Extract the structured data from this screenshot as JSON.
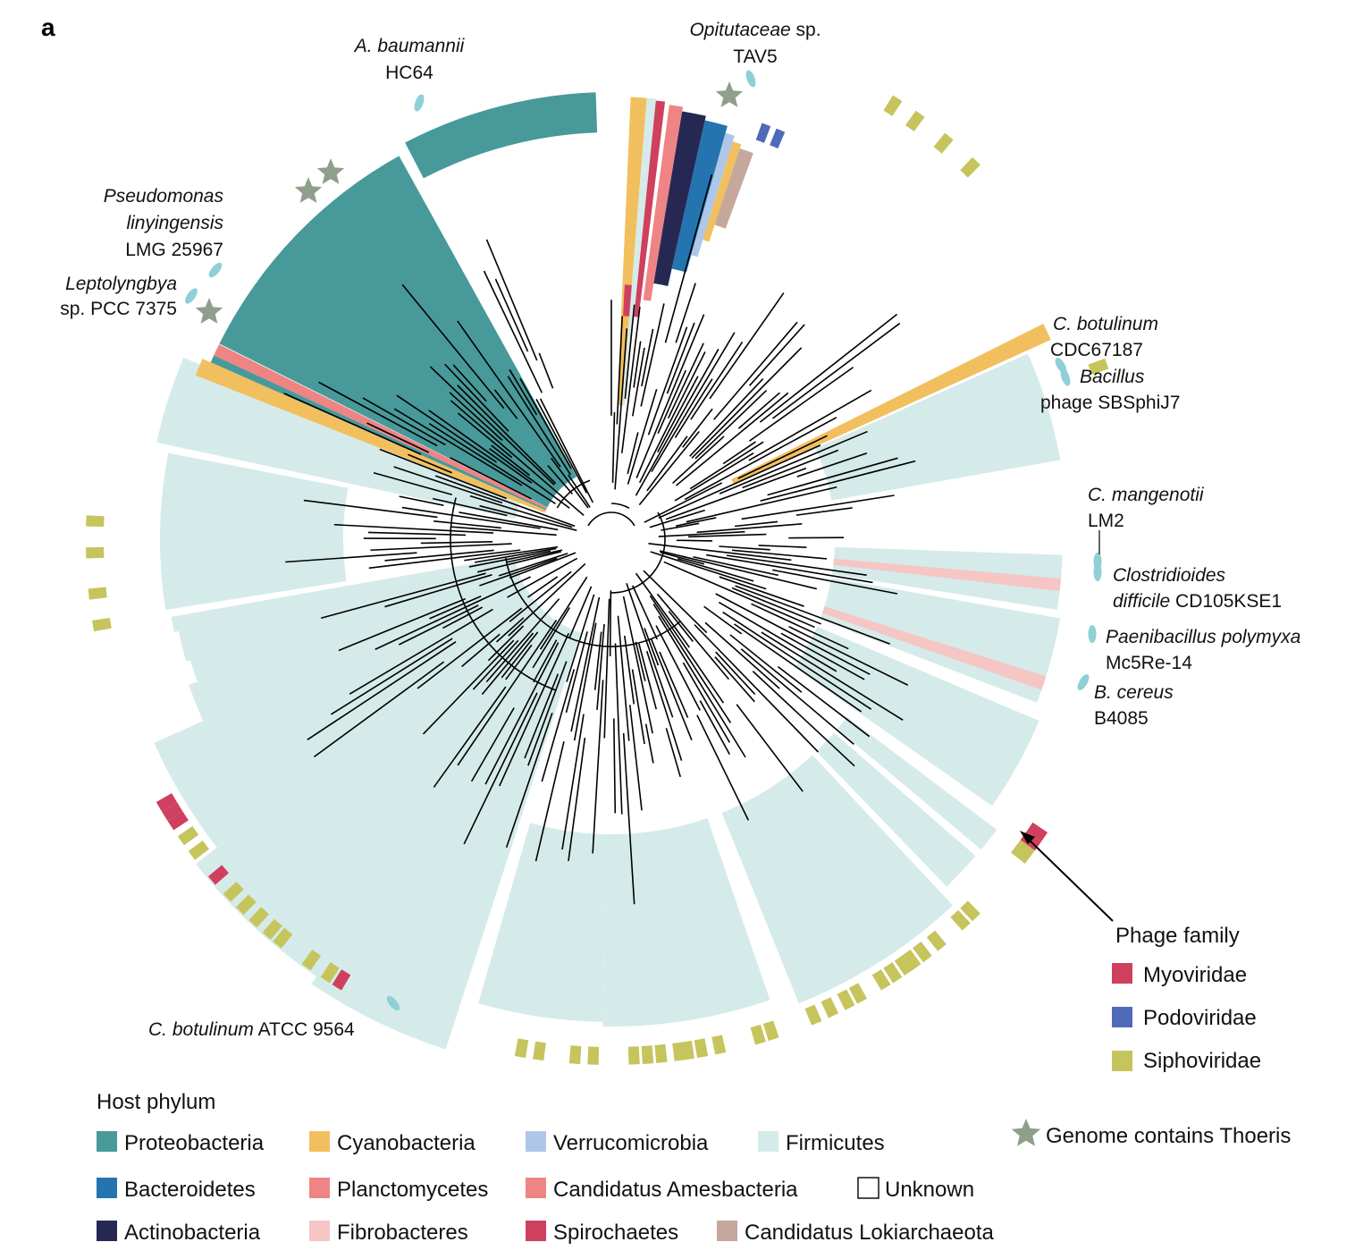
{
  "panel_label": "a",
  "colors": {
    "proteobacteria": "#48999a",
    "cyanobacteria": "#f2bf5e",
    "verrucomicrobia": "#aec7e8",
    "firmicutes": "#d5ebea",
    "bacteroidetes": "#2474b0",
    "planctomycetes": "#ef8484",
    "amesbacteria": "#ef8484",
    "actinobacteria": "#262853",
    "fibrobacteres": "#f5c6c4",
    "spirochaetes": "#cf405e",
    "lokiarchaeota": "#c5a79c",
    "myoviridae": "#cf405e",
    "podoviridae": "#4f6ab8",
    "siphoviridae": "#c6c45c",
    "star": "#8f9f8c",
    "phage_icon": "#8fd0d6",
    "branch": "#000000"
  },
  "annotations": [
    {
      "italic": "A. baumannii",
      "normal": "",
      "line2_italic": "",
      "line2": "HC64"
    },
    {
      "italic": "Opitutaceae",
      "normal": " sp.",
      "line2_italic": "",
      "line2": "TAV5"
    },
    {
      "italic": "Pseudomonas",
      "normal": "",
      "line2_italic": "linyingensis",
      "line2": "",
      "line3": "LMG 25967"
    },
    {
      "italic": "Leptolyngbya",
      "normal": "",
      "line2_italic": "",
      "line2": "sp. PCC 7375"
    },
    {
      "italic": "C. botulinum",
      "normal": "",
      "line2_italic": "",
      "line2": "CDC67187"
    },
    {
      "italic": "Bacillus",
      "normal": "",
      "line2_italic": "",
      "line2": "phage SBSphiJ7"
    },
    {
      "italic": "C. mangenotii",
      "normal": "",
      "line2_italic": "",
      "line2": "LM2"
    },
    {
      "italic": "Clostridioides",
      "normal": "",
      "line2_italic": "difficile",
      "line2": " CD105KSE1"
    },
    {
      "italic": "Paenibacillus polymyxa",
      "normal": "",
      "line2_italic": "",
      "line2": "Mc5Re-14"
    },
    {
      "italic": "B. cereus",
      "normal": "",
      "line2_italic": "",
      "line2": "B4085"
    },
    {
      "italic": "C. botulinum",
      "normal": " ATCC 9564",
      "line2_italic": "",
      "line2": ""
    }
  ],
  "phage_legend": {
    "title": "Phage family",
    "items": [
      {
        "label": "Myoviridae",
        "color": "#cf405e"
      },
      {
        "label": "Podoviridae",
        "color": "#4f6ab8"
      },
      {
        "label": "Siphoviridae",
        "color": "#c6c45c"
      }
    ]
  },
  "star_legend": {
    "label": "Genome contains Thoeris"
  },
  "host_legend": {
    "title": "Host phylum",
    "items": [
      {
        "label": "Proteobacteria",
        "color": "#48999a"
      },
      {
        "label": "Cyanobacteria",
        "color": "#f2bf5e"
      },
      {
        "label": "Verrucomicrobia",
        "color": "#aec7e8"
      },
      {
        "label": "Firmicutes",
        "color": "#d5ebea"
      },
      {
        "label": "Bacteroidetes",
        "color": "#2474b0"
      },
      {
        "label": "Planctomycetes",
        "color": "#ef8484"
      },
      {
        "label": "Candidatus Amesbacteria",
        "color": "#ef8484"
      },
      {
        "label": "Unknown",
        "color": "#ffffff"
      },
      {
        "label": "Actinobacteria",
        "color": "#262853"
      },
      {
        "label": "Fibrobacteres",
        "color": "#f5c6c4"
      },
      {
        "label": "Spirochaetes",
        "color": "#cf405e"
      },
      {
        "label": "Candidatus Lokiarchaeota",
        "color": "#c5a79c"
      }
    ]
  }
}
